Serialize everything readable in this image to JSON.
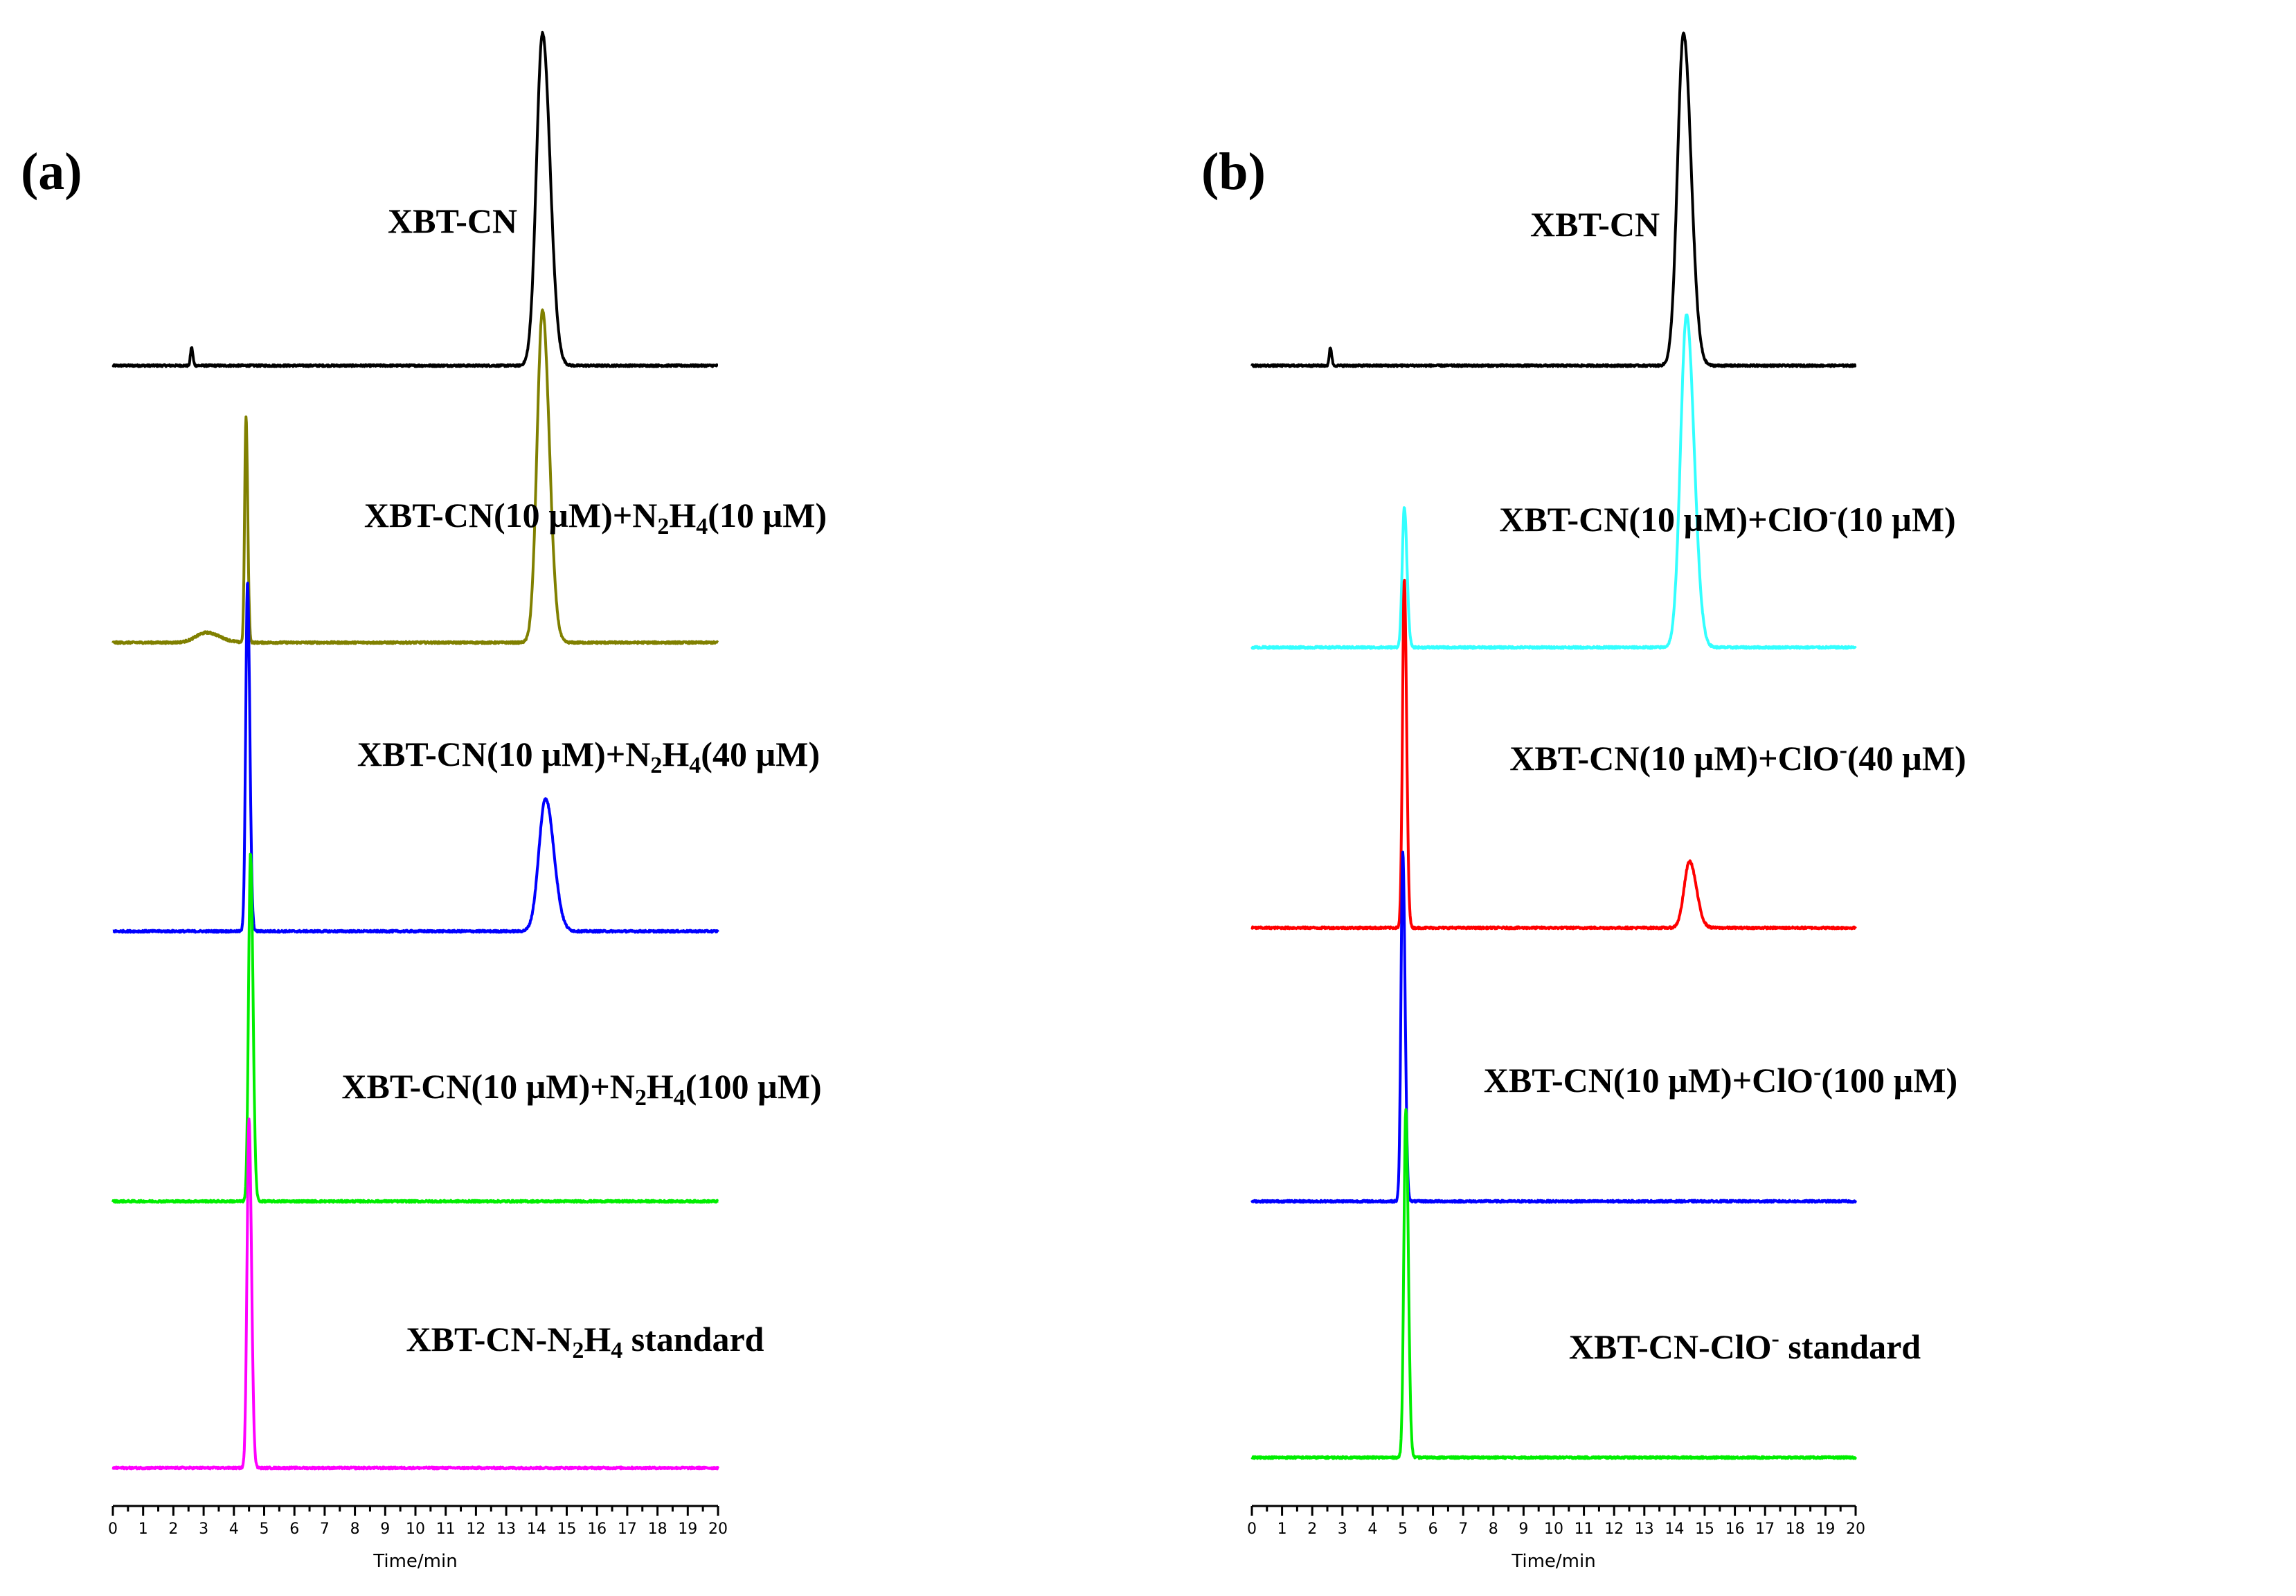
{
  "chart_data": [
    {
      "type": "line",
      "panel_label": "(a)",
      "xlabel": "Time/min",
      "xlim": [
        0,
        20
      ],
      "xticks": [
        "0",
        "1",
        "2",
        "3",
        "4",
        "5",
        "6",
        "7",
        "8",
        "9",
        "10",
        "11",
        "12",
        "13",
        "14",
        "15",
        "16",
        "17",
        "18",
        "19",
        "20"
      ],
      "series": [
        {
          "name": "XBT-CN",
          "color": "#000000",
          "label": {
            "parts": [
              {
                "t": "XBT-CN"
              }
            ]
          },
          "peaks": [
            {
              "rt": 2.6,
              "height": 0.055,
              "width": 0.035
            },
            {
              "rt": 14.2,
              "height": 1.0,
              "width": 0.2
            }
          ]
        },
        {
          "name": "XBT-CN(10 µM)+N2H4(10 µM)",
          "color": "#808000",
          "label": {
            "parts": [
              {
                "t": "XBT-CN(10 µM)+N"
              },
              {
                "t": "2",
                "sub": true
              },
              {
                "t": "H"
              },
              {
                "t": "4",
                "sub": true
              },
              {
                "t": "(10 µM)"
              }
            ]
          },
          "peaks": [
            {
              "rt": 3.1,
              "height": 0.03,
              "width": 0.35
            },
            {
              "rt": 4.4,
              "height": 0.68,
              "width": 0.045
            },
            {
              "rt": 14.2,
              "height": 1.0,
              "width": 0.18
            }
          ]
        },
        {
          "name": "XBT-CN(10 µM)+N2H4(40 µM)",
          "color": "#0000ff",
          "label": {
            "parts": [
              {
                "t": "XBT-CN(10 µM)+N"
              },
              {
                "t": "2",
                "sub": true
              },
              {
                "t": "H"
              },
              {
                "t": "4",
                "sub": true
              },
              {
                "t": "(40 µM)"
              }
            ]
          },
          "peaks": [
            {
              "rt": 4.45,
              "height": 1.05,
              "width": 0.06
            },
            {
              "rt": 14.3,
              "height": 0.4,
              "width": 0.22
            }
          ]
        },
        {
          "name": "XBT-CN(10 µM)+N2H4(100 µM)",
          "color": "#00ee00",
          "label": {
            "parts": [
              {
                "t": "XBT-CN(10 µM)+N"
              },
              {
                "t": "2",
                "sub": true
              },
              {
                "t": "H"
              },
              {
                "t": "4",
                "sub": true
              },
              {
                "t": "(100 µM)"
              }
            ]
          },
          "peaks": [
            {
              "rt": 4.55,
              "height": 1.05,
              "width": 0.065
            }
          ]
        },
        {
          "name": "XBT-CN-N2H4 standard",
          "color": "#ff00ff",
          "label": {
            "parts": [
              {
                "t": "XBT-CN-N"
              },
              {
                "t": "2",
                "sub": true
              },
              {
                "t": "H"
              },
              {
                "t": "4",
                "sub": true
              },
              {
                "t": " standard"
              }
            ]
          },
          "peaks": [
            {
              "rt": 4.5,
              "height": 1.05,
              "width": 0.065
            }
          ]
        }
      ]
    },
    {
      "type": "line",
      "panel_label": "(b)",
      "xlabel": "Time/min",
      "xlim": [
        0,
        20
      ],
      "xticks": [
        "0",
        "1",
        "2",
        "3",
        "4",
        "5",
        "6",
        "7",
        "8",
        "9",
        "10",
        "11",
        "12",
        "13",
        "14",
        "15",
        "16",
        "17",
        "18",
        "19",
        "20"
      ],
      "series": [
        {
          "name": "XBT-CN",
          "color": "#000000",
          "label": {
            "parts": [
              {
                "t": "XBT-CN"
              }
            ]
          },
          "peaks": [
            {
              "rt": 2.6,
              "height": 0.055,
              "width": 0.035
            },
            {
              "rt": 14.3,
              "height": 1.0,
              "width": 0.2
            }
          ]
        },
        {
          "name": "XBT-CN(10 µM)+ClO-(10 µM)",
          "color": "#33ffff",
          "label": {
            "parts": [
              {
                "t": "XBT-CN(10 µM)+ClO"
              },
              {
                "t": "-",
                "sup": true
              },
              {
                "t": "(10 µM)"
              }
            ]
          },
          "peaks": [
            {
              "rt": 5.05,
              "height": 0.42,
              "width": 0.07
            },
            {
              "rt": 14.4,
              "height": 1.0,
              "width": 0.2
            }
          ]
        },
        {
          "name": "XBT-CN(10 µM)+ClO-(40 µM)",
          "color": "#ff0000",
          "label": {
            "parts": [
              {
                "t": "XBT-CN(10 µM)+ClO"
              },
              {
                "t": "-",
                "sup": true
              },
              {
                "t": "(40 µM)"
              }
            ]
          },
          "peaks": [
            {
              "rt": 5.05,
              "height": 1.05,
              "width": 0.06
            },
            {
              "rt": 14.5,
              "height": 0.2,
              "width": 0.18
            }
          ]
        },
        {
          "name": "XBT-CN(10 µM)+ClO-(100 µM)",
          "color": "#0000ff",
          "label": {
            "parts": [
              {
                "t": "XBT-CN(10 µM)+ClO"
              },
              {
                "t": "-",
                "sup": true
              },
              {
                "t": "(100 µM)"
              }
            ]
          },
          "peaks": [
            {
              "rt": 5.0,
              "height": 1.05,
              "width": 0.06
            }
          ]
        },
        {
          "name": "XBT-CN-ClO- standard",
          "color": "#00ee00",
          "label": {
            "parts": [
              {
                "t": "XBT-CN-ClO"
              },
              {
                "t": "-",
                "sup": true
              },
              {
                "t": " standard"
              }
            ]
          },
          "peaks": [
            {
              "rt": 5.1,
              "height": 1.05,
              "width": 0.065
            }
          ]
        }
      ]
    }
  ]
}
